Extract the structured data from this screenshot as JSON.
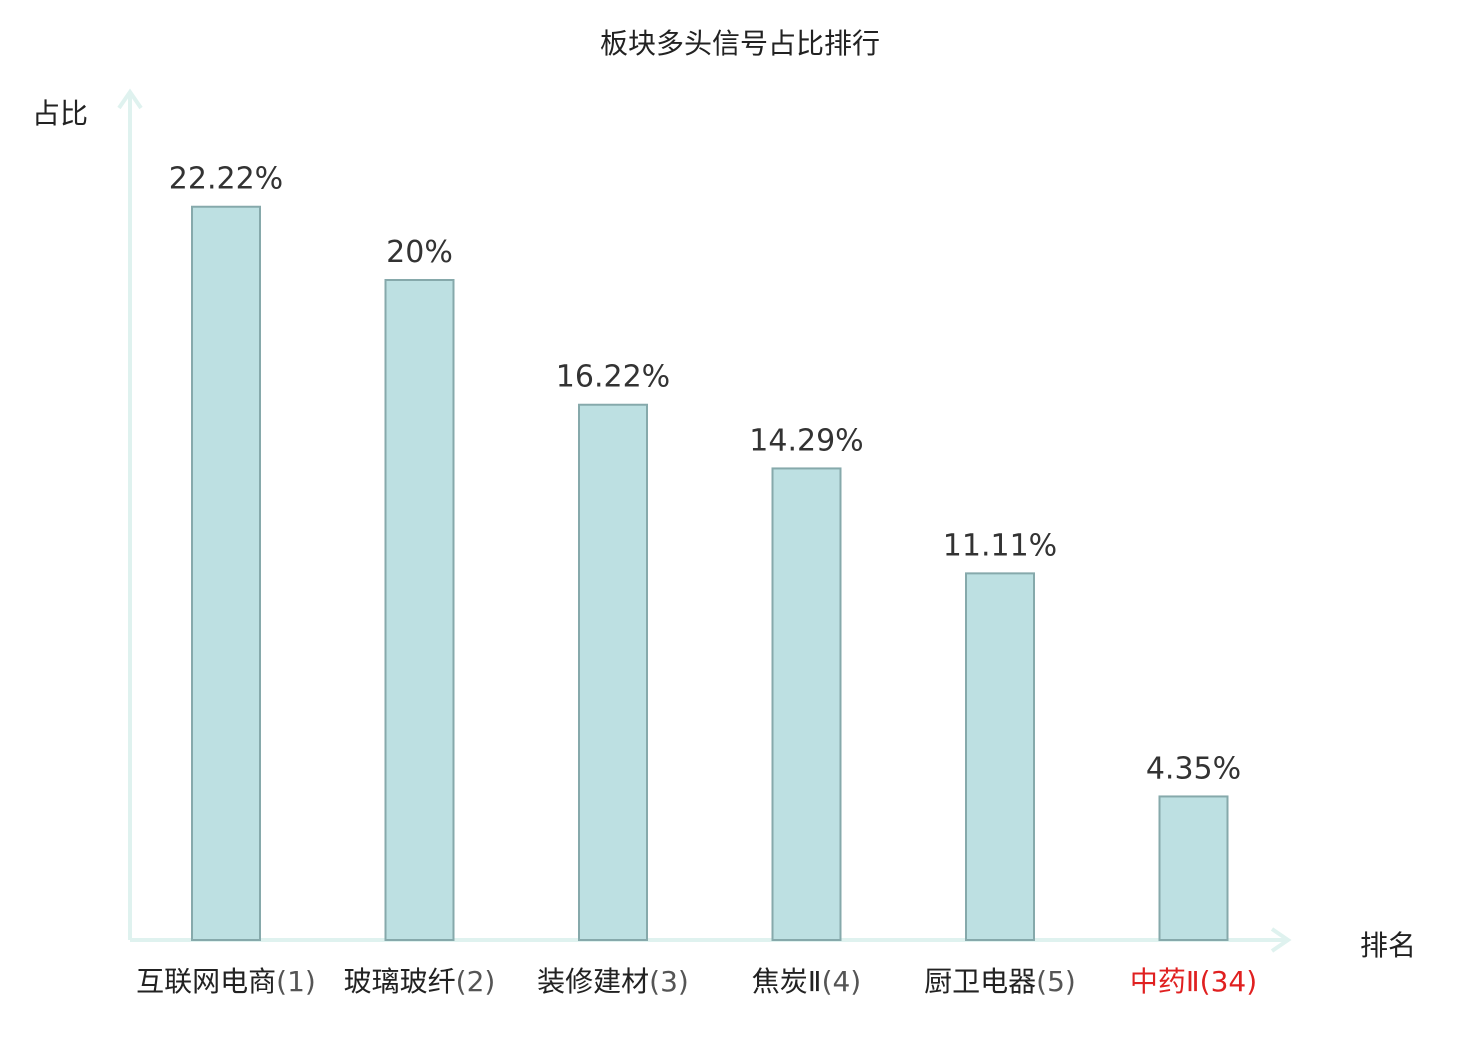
{
  "chart_data": {
    "type": "bar",
    "title": "板块多头信号占比排行",
    "xlabel": "排名",
    "ylabel": "占比",
    "categories": [
      "互联网电商",
      "玻璃玻纤",
      "装修建材",
      "焦炭Ⅱ",
      "厨卫电器",
      "中药Ⅱ"
    ],
    "ranks": [
      "(1)",
      "(2)",
      "(3)",
      "(4)",
      "(5)",
      "(34)"
    ],
    "values": [
      22.22,
      20,
      16.22,
      14.29,
      11.11,
      4.35
    ],
    "value_labels": [
      "22.22%",
      "20%",
      "16.22%",
      "14.29%",
      "11.11%",
      "4.35%"
    ],
    "highlight_index": 5,
    "ylim": [
      0,
      25
    ],
    "grid": false,
    "colors": {
      "bar_fill": "#bde0e2",
      "bar_stroke": "#86a9ab",
      "axis": "#dff2ef",
      "highlight_text": "#e02020",
      "text": "#222222"
    }
  }
}
